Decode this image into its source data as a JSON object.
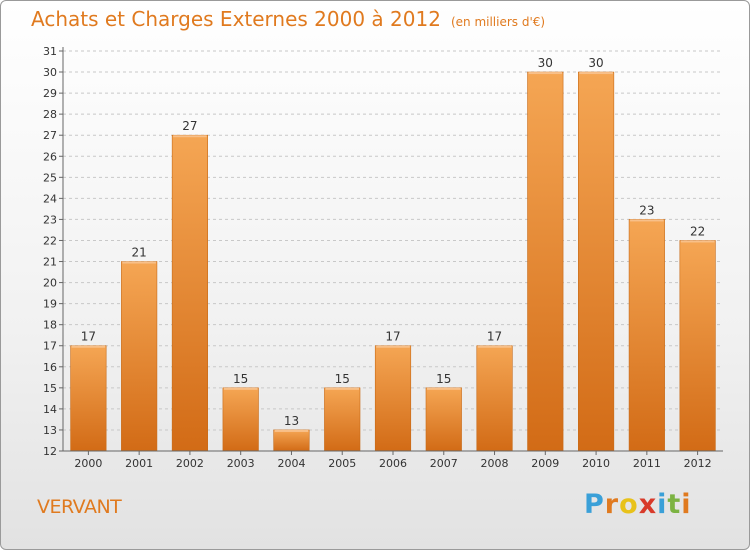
{
  "header": {
    "title": "Achats et Charges Externes 2000 à 2012",
    "unit": "(en milliers d'€)"
  },
  "footer": {
    "commune": "VERVANT",
    "logo_text": "Proxiti",
    "logo_colors": [
      "#3aa0d8",
      "#e07a1f",
      "#e8c21a",
      "#d83a2a",
      "#3aa0d8",
      "#7cb342",
      "#e07a1f"
    ]
  },
  "colors": {
    "bar_top": "#f5a654",
    "bar_bottom": "#d26b16",
    "accent": "#e07a1f",
    "grid": "#c8c8c8",
    "text": "#333333"
  },
  "chart_data": {
    "type": "bar",
    "title": "Achats et Charges Externes 2000 à 2012",
    "subtitle": "(en milliers d'€)",
    "categories": [
      "2000",
      "2001",
      "2002",
      "2003",
      "2004",
      "2005",
      "2006",
      "2007",
      "2008",
      "2009",
      "2010",
      "2011",
      "2012"
    ],
    "values": [
      17,
      21,
      27,
      15,
      13,
      15,
      17,
      15,
      17,
      30,
      30,
      23,
      22
    ],
    "ylim": [
      12,
      31
    ],
    "yticks": [
      12,
      13,
      14,
      15,
      16,
      17,
      18,
      19,
      20,
      21,
      22,
      23,
      24,
      25,
      26,
      27,
      28,
      29,
      30,
      31
    ],
    "grid": true,
    "legend": "none"
  }
}
